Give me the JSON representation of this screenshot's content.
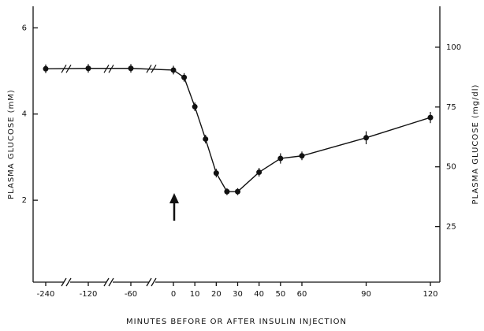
{
  "chart_data": {
    "type": "line",
    "y_label": "PLASMA GLUCOSE (mM)",
    "y2_label": "PLASMA GLUCOSE (mg/dl)",
    "x_label": "MINUTES BEFORE OR AFTER INSULIN INJECTION",
    "x": [
      -240,
      -120,
      -60,
      0,
      5,
      10,
      15,
      20,
      25,
      30,
      40,
      50,
      60,
      90,
      120
    ],
    "series": [
      {
        "color": "#111111",
        "values": [
          5.05,
          5.06,
          5.06,
          5.02,
          4.85,
          4.17,
          3.42,
          2.63,
          2.2,
          2.2,
          2.65,
          2.97,
          3.03,
          3.45,
          3.92
        ],
        "errors": [
          0.1,
          0.1,
          0.1,
          0.1,
          0.1,
          0.1,
          0.1,
          0.1,
          0.08,
          0.08,
          0.1,
          0.12,
          0.1,
          0.15,
          0.13
        ]
      }
    ],
    "xlim": [
      -240,
      120
    ],
    "xticks": [
      -240,
      -120,
      -60,
      0,
      10,
      20,
      30,
      40,
      50,
      60,
      90,
      120
    ],
    "ylim": [
      0.1,
      6.5
    ],
    "yticks": [
      2,
      4,
      6
    ],
    "y2lim": [
      1.8,
      117.1
    ],
    "y2ticks": [
      25,
      50,
      75,
      100
    ],
    "grid": false,
    "axis_breaks": true
  }
}
